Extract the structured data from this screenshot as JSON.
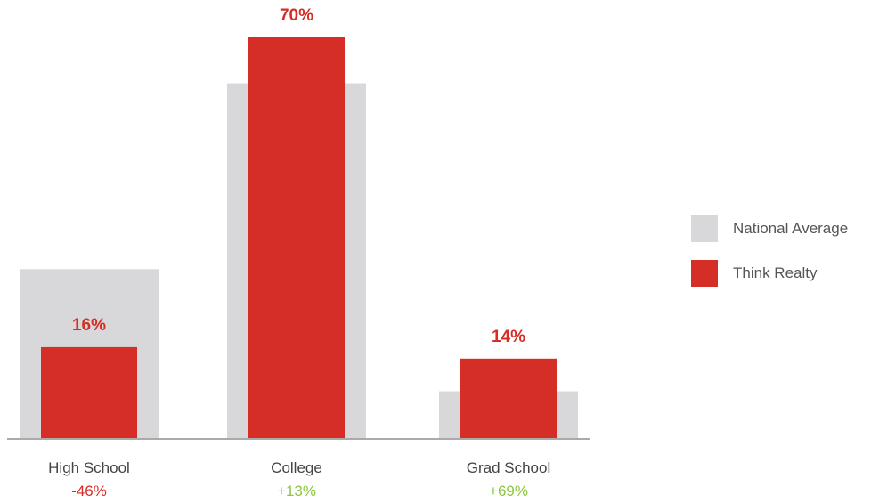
{
  "colors": {
    "national": "#d8d8da",
    "think": "#d52e27",
    "negative": "#d52e27",
    "positive": "#8cc63f",
    "axis": "#aaaaaa",
    "text": "#444444"
  },
  "legend": {
    "national_label": "National Average",
    "think_label": "Think Realty"
  },
  "chart_data": {
    "type": "bar",
    "categories": [
      "High School",
      "College",
      "Grad School"
    ],
    "series": [
      {
        "name": "National Average",
        "values": [
          29.6,
          62.0,
          8.3
        ]
      },
      {
        "name": "Think Realty",
        "values": [
          16,
          70,
          14
        ]
      }
    ],
    "value_labels": [
      "16%",
      "70%",
      "14%"
    ],
    "differences": [
      "-46%",
      "+13%",
      "+69%"
    ],
    "difference_signs": [
      "negative",
      "positive",
      "positive"
    ],
    "ylim": [
      0,
      70
    ],
    "grid": false,
    "legend_position": "right"
  }
}
